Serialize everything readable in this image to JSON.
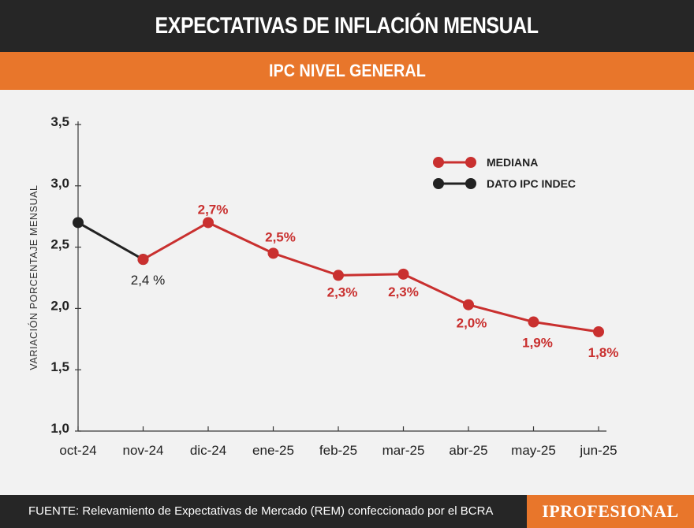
{
  "header": {
    "title": "EXPECTATIVAS DE INFLACIÓN MENSUAL"
  },
  "subheader": {
    "title": "IPC NIVEL GENERAL"
  },
  "footer": {
    "source": "FUENTE: Relevamiento de Expectativas de Mercado (REM) confeccionado por el BCRA",
    "logo": "IPROFESIONAL"
  },
  "colors": {
    "mediana": "#c9302f",
    "dato": "#222222",
    "header_bg": "#262626",
    "accent": "#e8762b"
  },
  "chart_data": {
    "type": "line",
    "title": "IPC NIVEL GENERAL",
    "xlabel": "",
    "ylabel": "VARIACIÓN PORCENTAJE MENSUAL",
    "ylim": [
      1.0,
      3.5
    ],
    "yticks": [
      1.0,
      1.5,
      2.0,
      2.5,
      3.0,
      3.5
    ],
    "ytick_labels": [
      "1,0",
      "1,5",
      "2,0",
      "2,5",
      "3,0",
      "3,5"
    ],
    "categories": [
      "oct-24",
      "nov-24",
      "dic-24",
      "ene-25",
      "feb-25",
      "mar-25",
      "abr-25",
      "may-25",
      "jun-25"
    ],
    "legend": {
      "position": "top-right",
      "entries": [
        "MEDIANA",
        "DATO IPC INDEC"
      ]
    },
    "series": [
      {
        "name": "DATO IPC INDEC",
        "color": "#222222",
        "points": [
          {
            "x": "oct-24",
            "y": 2.7,
            "label": ""
          },
          {
            "x": "nov-24",
            "y": 2.4,
            "label": "2,4 %"
          }
        ]
      },
      {
        "name": "MEDIANA",
        "color": "#c9302f",
        "points": [
          {
            "x": "nov-24",
            "y": 2.4,
            "label": ""
          },
          {
            "x": "dic-24",
            "y": 2.7,
            "label": "2,7%"
          },
          {
            "x": "ene-25",
            "y": 2.45,
            "label": "2,5%"
          },
          {
            "x": "feb-25",
            "y": 2.27,
            "label": "2,3%"
          },
          {
            "x": "mar-25",
            "y": 2.28,
            "label": "2,3%"
          },
          {
            "x": "abr-25",
            "y": 2.03,
            "label": "2,0%"
          },
          {
            "x": "may-25",
            "y": 1.89,
            "label": "1,9%"
          },
          {
            "x": "jun-25",
            "y": 1.81,
            "label": "1,8%"
          }
        ]
      }
    ]
  }
}
